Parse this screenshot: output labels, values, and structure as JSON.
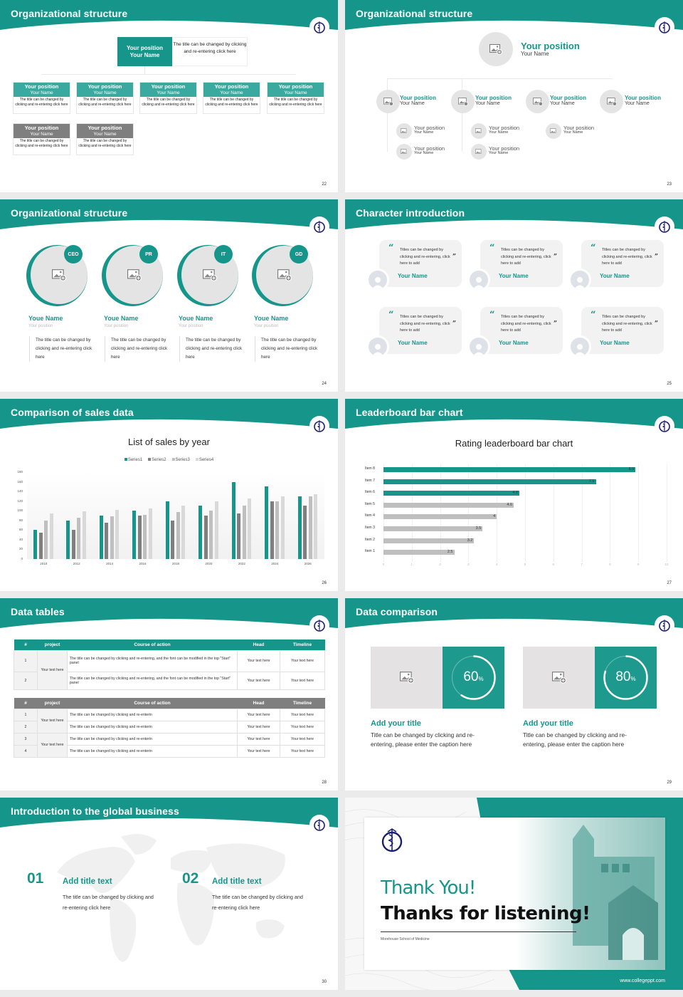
{
  "colors": {
    "accent": "#16968b",
    "gray_bar": "#7f7f7f",
    "light_gray": "#e4e4e4",
    "logo_navy": "#1c1f6e"
  },
  "slides": {
    "s22": {
      "title": "Organizational structure",
      "page": "22",
      "top": {
        "position": "Your position",
        "name": "Your Name",
        "desc": "The title can be changed by clicking and re-entering click here"
      },
      "row1": [
        {
          "position": "Your position",
          "name": "Your Name",
          "desc": "The title can be changed by clicking and re-entering click here"
        },
        {
          "position": "Your position",
          "name": "Your Name",
          "desc": "The title can be changed by clicking and re-entering click here"
        },
        {
          "position": "Your position",
          "name": "Your Name",
          "desc": "The title can be changed by clicking and re-entering click here"
        },
        {
          "position": "Your position",
          "name": "Your Name",
          "desc": "The title can be changed by clicking and re-entering click here"
        },
        {
          "position": "Your position",
          "name": "Your Name",
          "desc": "The title can be changed by clicking and re-entering click here"
        }
      ],
      "row2": [
        {
          "position": "Your position",
          "name": "Your Name",
          "desc": "The title can be changed by clicking and re-entering click here"
        },
        {
          "position": "Your position",
          "name": "Your Name",
          "desc": "The title can be changed by clicking and re-entering click here"
        }
      ]
    },
    "s23": {
      "title": "Organizational structure",
      "page": "23",
      "top": {
        "position": "Your position",
        "name": "Your Name"
      },
      "level2": [
        {
          "position": "Your position",
          "name": "Your Name"
        },
        {
          "position": "Your position",
          "name": "Your Name"
        },
        {
          "position": "Your position",
          "name": "Your Name"
        },
        {
          "position": "Your position",
          "name": "Your Name"
        }
      ],
      "level3": [
        {
          "position": "Your position",
          "name": "Your Name"
        },
        {
          "position": "Your position",
          "name": "Your Name"
        },
        {
          "position": "Your position",
          "name": "Your Name"
        },
        {
          "position": "Your position",
          "name": "Your Name"
        },
        {
          "position": "Your position",
          "name": "Your Name"
        }
      ]
    },
    "s24": {
      "title": "Organizational structure",
      "page": "24",
      "people": [
        {
          "badge": "CEO",
          "name": "Youe Name",
          "position": "Your position",
          "desc": "The title can be changed by clicking and re-entering click here"
        },
        {
          "badge": "PR",
          "name": "Youe Name",
          "position": "Your position",
          "desc": "The title can be changed by clicking and re-entering click here"
        },
        {
          "badge": "IT",
          "name": "Youe Name",
          "position": "Your position",
          "desc": "The title can be changed by clicking and re-entering click here"
        },
        {
          "badge": "GD",
          "name": "Youe Name",
          "position": "Your position",
          "desc": "The title can be changed by clicking and re-entering click here"
        }
      ]
    },
    "s25": {
      "title": "Character introduction",
      "page": "25",
      "cards": [
        {
          "quote": "Titles can be changed by clicking and re-entering, click here to add",
          "name": "Your Name"
        },
        {
          "quote": "Titles can be changed by clicking and re-entering, click here to add",
          "name": "Your Name"
        },
        {
          "quote": "Titles can be changed by clicking and re-entering, click here to add",
          "name": "Your Name"
        },
        {
          "quote": "Titles can be changed by clicking and re-entering, click here to add",
          "name": "Your Name"
        },
        {
          "quote": "Titles can be changed by clicking and re-entering, click here to add",
          "name": "Your Name"
        },
        {
          "quote": "Titles can be changed by clicking and re-entering, click here to add",
          "name": "Your Name"
        }
      ]
    },
    "s26": {
      "title": "Comparison of sales data",
      "page": "26"
    },
    "s27": {
      "title": "Leaderboard bar chart",
      "page": "27"
    },
    "s28": {
      "title": "Data tables",
      "page": "28",
      "headers": [
        "#",
        "project",
        "Course of action",
        "Head",
        "Timeline"
      ],
      "table1": [
        {
          "num": "1",
          "project": "Your text here",
          "action": "The title can be changed by clicking and re-entering, and the font can be modified in the top \"Start\" panel",
          "head": "Your text here",
          "timeline": "Your text here"
        },
        {
          "num": "2",
          "project": "",
          "action": "The title can be changed by clicking and re-entering, and the font can be modified in the top \"Start\" panel",
          "head": "Your text here",
          "timeline": "Your text here"
        }
      ],
      "table2": [
        {
          "num": "1",
          "project": "Your text here",
          "action": "The title can be changed by clicking and re-enterin",
          "head": "Your text here",
          "timeline": "Your text here"
        },
        {
          "num": "2",
          "project": "",
          "action": "The title can be changed by clicking and re-enterin",
          "head": "Your text here",
          "timeline": "Your text here"
        },
        {
          "num": "3",
          "project": "Your text here",
          "action": "The title can be changed by clicking and re-enterin",
          "head": "Your text here",
          "timeline": "Your text here"
        },
        {
          "num": "4",
          "project": "",
          "action": "The title can be changed by clicking and re-enterin",
          "head": "Your text here",
          "timeline": "Your text here"
        }
      ]
    },
    "s29": {
      "title": "Data comparison",
      "page": "29",
      "items": [
        {
          "value": "60",
          "unit": "%",
          "title": "Add your title",
          "desc": "Title can be changed by clicking and re-entering, please enter the caption here"
        },
        {
          "value": "80",
          "unit": "%",
          "title": "Add your title",
          "desc": "Title can be changed by clicking and re-entering, please enter the caption here"
        }
      ]
    },
    "s30": {
      "title": "Introduction to the global business",
      "page": "30",
      "items": [
        {
          "num": "01",
          "title": "Add title text",
          "desc": "The title can be changed by clicking and re-entering click here"
        },
        {
          "num": "02",
          "title": "Add title text",
          "desc": "The title can be changed by clicking and re-entering click here"
        }
      ]
    },
    "s31": {
      "thank_you": "Thank You!",
      "thanks": "Thanks for listening!",
      "school": "Morehouse School of Medicine",
      "url": "www.collegeppt.com"
    }
  },
  "chart_data": [
    {
      "type": "bar",
      "title": "List of sales by year",
      "categories": [
        "2010",
        "2012",
        "2014",
        "2016",
        "2018",
        "2020",
        "2022",
        "2024",
        "2026"
      ],
      "series": [
        {
          "name": "Series1",
          "color": "#16968b",
          "values": [
            60,
            80,
            90,
            100,
            120,
            110,
            160,
            150,
            130
          ]
        },
        {
          "name": "Series2",
          "color": "#7f7f7f",
          "values": [
            55,
            60,
            75,
            90,
            80,
            90,
            95,
            120,
            110
          ]
        },
        {
          "name": "Series3",
          "color": "#bfbfbf",
          "values": [
            80,
            85,
            88,
            92,
            98,
            100,
            110,
            120,
            130
          ]
        },
        {
          "name": "Series4",
          "color": "#d9d9d9",
          "values": [
            95,
            99,
            102,
            105,
            110,
            120,
            126,
            130,
            135
          ]
        }
      ],
      "xlabel": "",
      "ylabel": "",
      "yticks": [
        0,
        20,
        40,
        60,
        80,
        100,
        120,
        140,
        160,
        180
      ],
      "ylim": [
        0,
        180
      ],
      "legend_position": "top",
      "grid": false
    },
    {
      "type": "bar",
      "orientation": "horizontal",
      "title": "Rating leaderboard bar chart",
      "categories": [
        "Item 8",
        "Item 7",
        "Item 6",
        "Item 5",
        "Item 4",
        "Item 3",
        "Item 2",
        "Item 1"
      ],
      "values": [
        8.9,
        7.5,
        4.8,
        4.6,
        4,
        3.5,
        3.2,
        2.5
      ],
      "highlight_colors": [
        "#16968b",
        "#16968b",
        "#16968b",
        "#bfbfbf",
        "#bfbfbf",
        "#bfbfbf",
        "#bfbfbf",
        "#bfbfbf"
      ],
      "xticks": [
        0,
        1,
        2,
        3,
        4,
        5,
        6,
        7,
        8,
        9,
        10
      ],
      "xlim": [
        0,
        10
      ],
      "data_labels": true,
      "grid": true
    }
  ]
}
